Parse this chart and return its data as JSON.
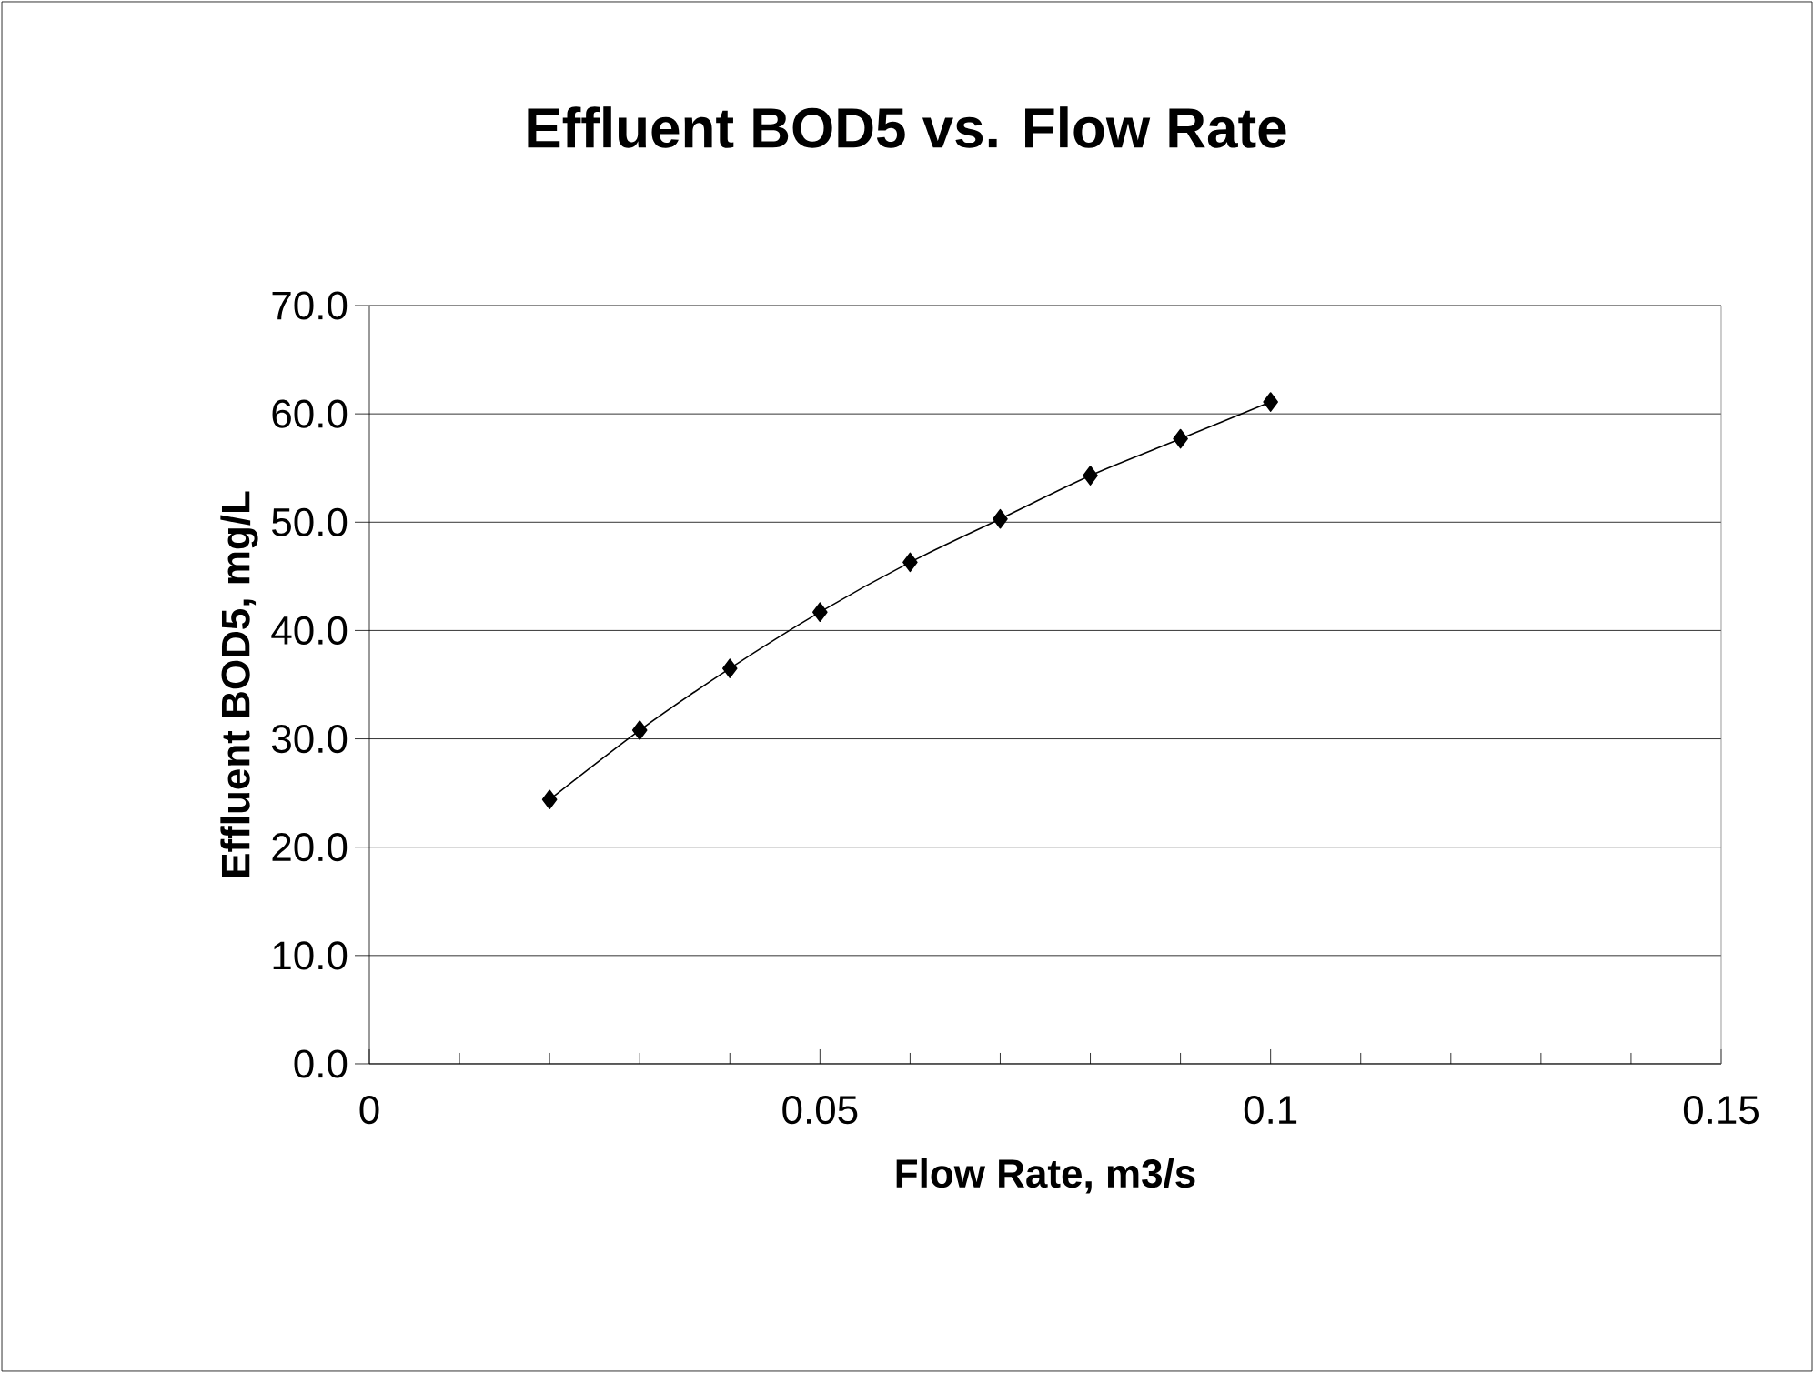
{
  "chart_data": {
    "type": "line",
    "title": "Effluent BOD5 vs. Flow Rate",
    "xlabel": "Flow Rate, m3/s",
    "ylabel": "Effluent BOD5, mg/L",
    "x": [
      0.02,
      0.03,
      0.04,
      0.05,
      0.06,
      0.07,
      0.08,
      0.09,
      0.1
    ],
    "series": [
      {
        "color": "#000000",
        "values": [
          24.4,
          30.8,
          36.5,
          41.7,
          46.3,
          50.3,
          54.3,
          57.7,
          61.1
        ]
      }
    ],
    "xlim": [
      0,
      0.15
    ],
    "xticks": [
      0,
      0.05,
      0.1,
      0.15
    ],
    "ylim": [
      0,
      70
    ],
    "yticks": [
      {
        "value": 0,
        "label": "0.0"
      },
      {
        "value": 10,
        "label": "10.0"
      },
      {
        "value": 20,
        "label": "20.0"
      },
      {
        "value": 30,
        "label": "30.0"
      },
      {
        "value": 40,
        "label": "40.0"
      },
      {
        "value": 50,
        "label": "50.0"
      },
      {
        "value": 60,
        "label": "60.0"
      },
      {
        "value": 70,
        "label": "70.0"
      }
    ],
    "grid": "y",
    "marker": "diamond"
  }
}
